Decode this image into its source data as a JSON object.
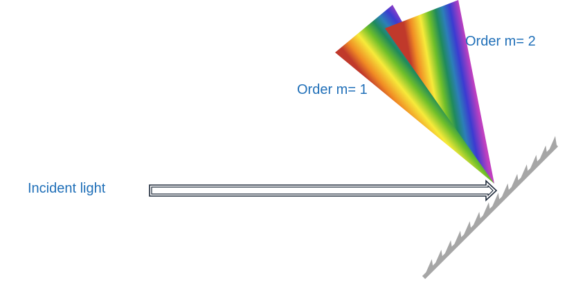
{
  "labels": {
    "incident": "Incident light",
    "order_1": "Order m= 1",
    "order_2": "Order m= 2"
  },
  "colors": {
    "label_text": "#1f6fb8",
    "grating": "#a6a6a6",
    "arrow_outline": "#1e2a3a",
    "spectrum": [
      "#c0392b",
      "#f08a24",
      "#f7ea3a",
      "#6fbf2a",
      "#1f8a5c",
      "#2c7fb8",
      "#3b3bd1",
      "#7a3cc6",
      "#c040c0"
    ]
  }
}
